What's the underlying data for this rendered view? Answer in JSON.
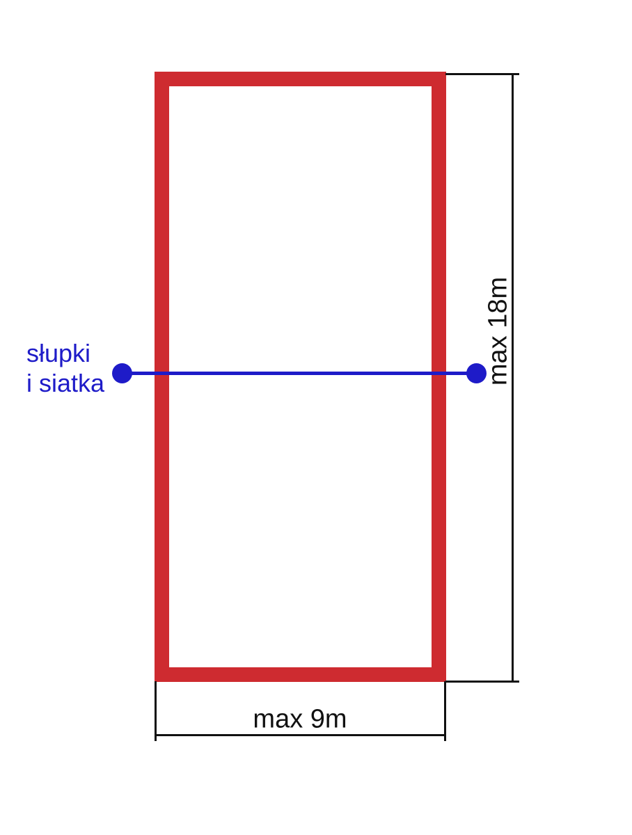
{
  "colors": {
    "bg": "#ffffff",
    "court-red": "#ce2b30",
    "net-blue": "#1e1bc8",
    "ink": "#111111"
  },
  "diagram": {
    "type": "volleyball-court-dimension-diagram",
    "net": {
      "label_line1": "słupki",
      "label_line2": "i siatka"
    },
    "dimensions": {
      "height": {
        "label": "max 18m"
      },
      "width": {
        "label": "max 9m"
      }
    }
  }
}
